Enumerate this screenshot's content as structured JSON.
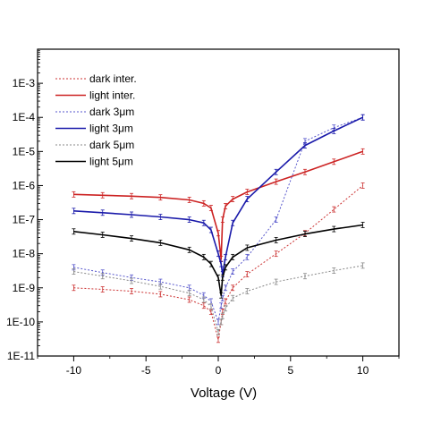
{
  "chart_data": {
    "type": "line",
    "title": "",
    "xlabel": "Voltage (V)",
    "ylabel": "",
    "yscale": "log",
    "xlim": [
      -12.5,
      12.5
    ],
    "ylim": [
      1e-11,
      0.01
    ],
    "grid": false,
    "legend_placement": "top-left",
    "x_ticks": [
      -10,
      -5,
      0,
      5,
      10
    ],
    "x_tick_labels": [
      "-10",
      "-5",
      "0",
      "5",
      "10"
    ],
    "y_ticks": [
      1e-11,
      1e-10,
      1e-09,
      1e-08,
      1e-07,
      1e-06,
      1e-05,
      0.0001,
      0.001
    ],
    "y_tick_labels": [
      "1E-11",
      "1E-10",
      "1E-9",
      "1E-8",
      "1E-7",
      "1E-6",
      "1E-5",
      "1E-4",
      "1E-3"
    ],
    "x": [
      -10,
      -8,
      -6,
      -4,
      -2,
      -1,
      -0.5,
      0,
      0.2,
      0.3,
      0.5,
      1,
      2,
      4,
      6,
      8,
      10
    ],
    "series": [
      {
        "name": "dark inter.",
        "color": "#cc3333",
        "style": "dotted",
        "values": [
          1e-09,
          9e-10,
          8e-10,
          6.5e-10,
          4.5e-10,
          3e-10,
          2e-10,
          3e-11,
          1e-10,
          2e-10,
          4e-10,
          1e-09,
          2.5e-09,
          1e-08,
          4e-08,
          2e-07,
          1e-06
        ]
      },
      {
        "name": "light inter.",
        "color": "#cc2222",
        "style": "solid",
        "values": [
          5.5e-07,
          5.2e-07,
          4.9e-07,
          4.5e-07,
          3.8e-07,
          3e-07,
          2.2e-07,
          4e-08,
          7e-09,
          1e-07,
          2.5e-07,
          4e-07,
          6.5e-07,
          1.3e-06,
          2.5e-06,
          5e-06,
          1e-05
        ]
      },
      {
        "name": "dark 3μm",
        "color": "#5555cc",
        "style": "dotted",
        "values": [
          4e-09,
          2.8e-09,
          2e-09,
          1.5e-09,
          1e-09,
          6e-10,
          4e-10,
          1e-10,
          3e-10,
          5e-10,
          1e-09,
          3e-09,
          8e-09,
          1e-07,
          2e-05,
          5e-05,
          0.0001
        ]
      },
      {
        "name": "light 3μm",
        "color": "#1a1aaa",
        "style": "solid",
        "values": [
          1.8e-07,
          1.6e-07,
          1.4e-07,
          1.2e-07,
          1e-07,
          8e-08,
          5e-08,
          1e-08,
          5e-09,
          2.5e-09,
          8e-09,
          8e-08,
          4e-07,
          2.5e-06,
          1.5e-05,
          4e-05,
          0.0001
        ]
      },
      {
        "name": "dark 5μm",
        "color": "#888888",
        "style": "dotted",
        "values": [
          3e-09,
          2.2e-09,
          1.6e-09,
          1.1e-09,
          7e-10,
          4.5e-10,
          2.8e-10,
          5e-11,
          1e-10,
          1.5e-10,
          2.5e-10,
          5e-10,
          8e-10,
          1.5e-09,
          2.2e-09,
          3.2e-09,
          4.5e-09
        ]
      },
      {
        "name": "light 5μm",
        "color": "#000000",
        "style": "solid",
        "values": [
          4.5e-08,
          3.6e-08,
          2.8e-08,
          2.1e-08,
          1.3e-08,
          8e-09,
          5e-09,
          2e-09,
          6e-10,
          2e-09,
          4e-09,
          8e-09,
          1.5e-08,
          2.5e-08,
          3.8e-08,
          5.3e-08,
          7e-08
        ]
      }
    ]
  }
}
